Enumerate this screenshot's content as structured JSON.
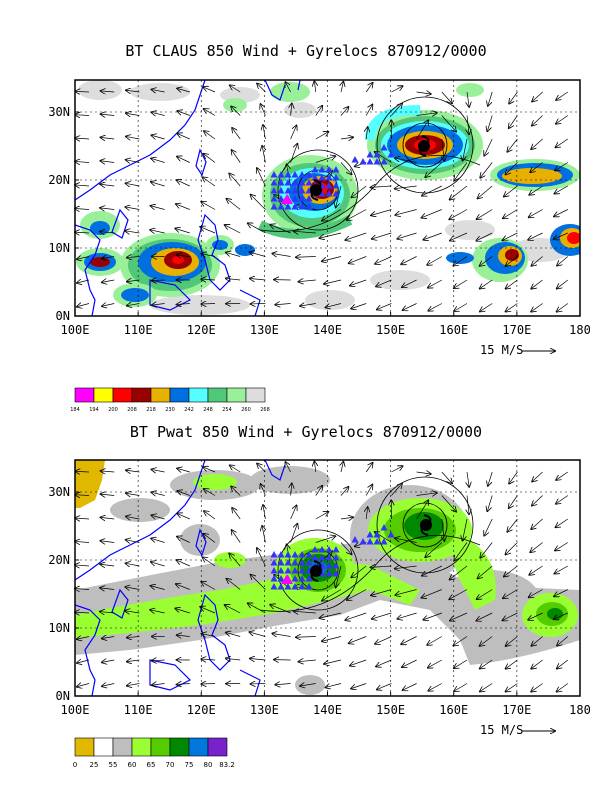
{
  "panels": [
    {
      "title": "BT CLAUS 850 Wind + Gyrelocs 870912/0000",
      "lat_labels": [
        "30N",
        "20N",
        "10N",
        "0N"
      ],
      "lon_labels": [
        "100E",
        "110E",
        "120E",
        "130E",
        "140E",
        "150E",
        "160E",
        "170E",
        "180"
      ],
      "wind_scale_label": "15 M/S",
      "colorbar": {
        "colors": [
          "#ff00ff",
          "#ffff00",
          "#ff0000",
          "#990000",
          "#e8b000",
          "#0070e0",
          "#55ffff",
          "#50c878",
          "#99f099",
          "#dddddd"
        ],
        "labels": [
          "184",
          "194",
          "200",
          "208",
          "218",
          "230",
          "242",
          "248",
          "254",
          "260",
          "268"
        ]
      }
    },
    {
      "title": "BT Pwat 850 Wind + Gyrelocs 870912/0000",
      "lat_labels": [
        "30N",
        "20N",
        "10N",
        "0N"
      ],
      "lon_labels": [
        "100E",
        "110E",
        "120E",
        "130E",
        "140E",
        "150E",
        "160E",
        "170E",
        "180"
      ],
      "wind_scale_label": "15 M/S",
      "colorbar": {
        "colors": [
          "#e0b800",
          "#ffffff",
          "#bebebe",
          "#99ff33",
          "#55cc00",
          "#008800",
          "#0077dd",
          "#7722cc"
        ],
        "labels": [
          "0",
          "25",
          "55",
          "60",
          "65",
          "70",
          "75",
          "80",
          "83.2"
        ]
      }
    }
  ]
}
